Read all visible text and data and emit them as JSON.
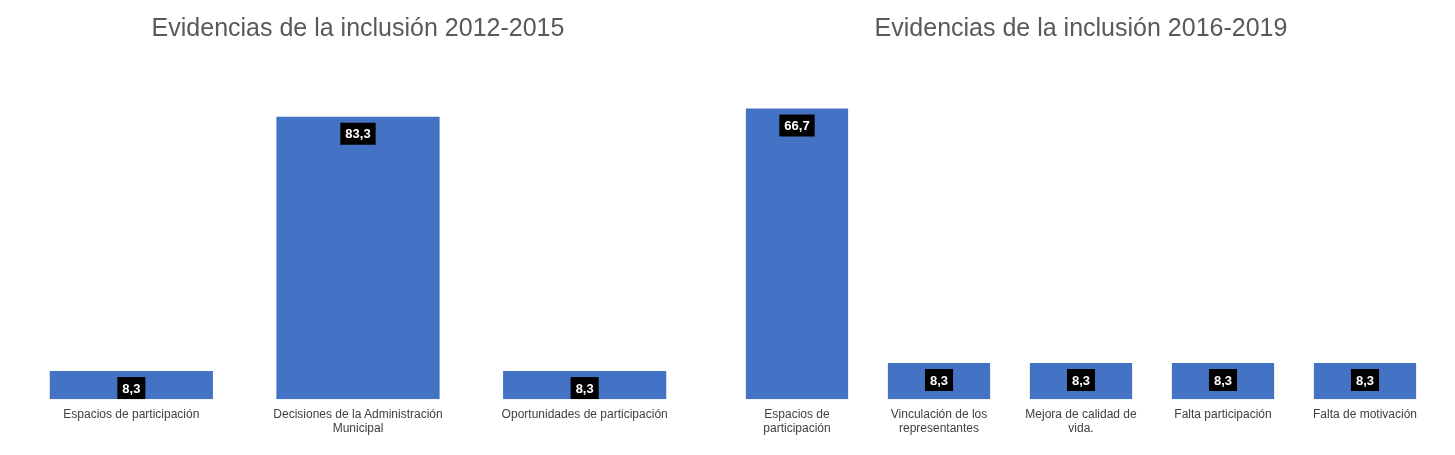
{
  "chart_data": [
    {
      "type": "bar",
      "title": "Evidencias de la inclusión 2012-2015",
      "categories": [
        "Espacios de participación",
        "Decisiones de la Administración Municipal",
        "Oportunidades de participación"
      ],
      "values": [
        8.3,
        83.3,
        8.3
      ],
      "value_labels": [
        "8,3",
        "83,3",
        "8,3"
      ],
      "color": "#4472c4"
    },
    {
      "type": "bar",
      "title": "Evidencias de la inclusión 2016-2019",
      "categories": [
        "Espacios de participación",
        "Vinculación de los representantes",
        "Mejora de calidad de vida.",
        "Falta participación",
        "Falta de motivación"
      ],
      "values": [
        66.7,
        8.3,
        8.3,
        8.3,
        8.3
      ],
      "value_labels": [
        "66,7",
        "8,3",
        "8,3",
        "8,3",
        "8,3"
      ],
      "color": "#4472c4"
    }
  ]
}
